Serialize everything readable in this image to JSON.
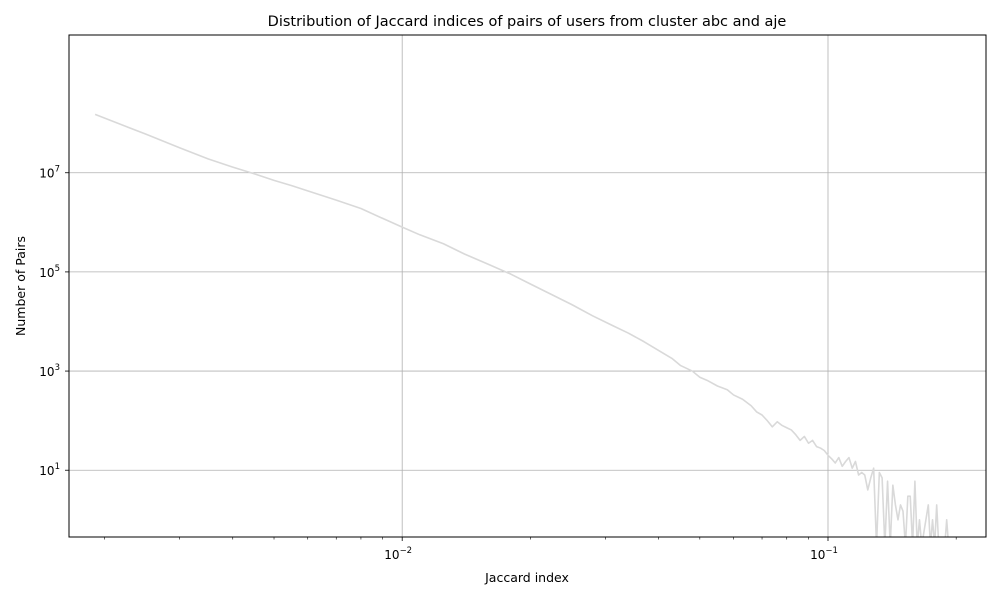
{
  "chart_data": {
    "type": "line",
    "title": "Distribution of Jaccard indices of pairs of users from cluster abc and aje",
    "xlabel": "Jaccard index",
    "ylabel": "Number of Pairs",
    "xscale": "log",
    "yscale": "log",
    "xlim": [
      0.00165,
      0.235
    ],
    "ylim": [
      0.45,
      6000000000
    ],
    "grid": true,
    "line_color": "#d9d9d9",
    "x_ticks": [
      {
        "value": 0.01,
        "base": "10",
        "exp": "−2"
      },
      {
        "value": 0.1,
        "base": "10",
        "exp": "−1"
      }
    ],
    "y_ticks": [
      {
        "value": 10,
        "base": "10",
        "exp": "1"
      },
      {
        "value": 1000,
        "base": "10",
        "exp": "3"
      },
      {
        "value": 100000,
        "base": "10",
        "exp": "5"
      },
      {
        "value": 10000000,
        "base": "10",
        "exp": "7"
      }
    ],
    "series": [
      {
        "points": [
          [
            0.0019,
            150000000
          ],
          [
            0.0025,
            60000000
          ],
          [
            0.003,
            32000000
          ],
          [
            0.0035,
            19000000
          ],
          [
            0.004,
            13000000
          ],
          [
            0.0045,
            9500000
          ],
          [
            0.005,
            7000000
          ],
          [
            0.0055,
            5500000
          ],
          [
            0.006,
            4300000
          ],
          [
            0.007,
            2800000
          ],
          [
            0.008,
            1900000
          ],
          [
            0.009,
            1200000
          ],
          [
            0.01,
            800000
          ],
          [
            0.011,
            560000
          ],
          [
            0.0125,
            370000
          ],
          [
            0.014,
            230000
          ],
          [
            0.016,
            140000
          ],
          [
            0.018,
            90000
          ],
          [
            0.02,
            57000
          ],
          [
            0.022,
            38000
          ],
          [
            0.025,
            22000
          ],
          [
            0.028,
            13000
          ],
          [
            0.031,
            8500
          ],
          [
            0.034,
            5800
          ],
          [
            0.037,
            3900
          ],
          [
            0.04,
            2600
          ],
          [
            0.043,
            1800
          ],
          [
            0.045,
            1300
          ],
          [
            0.048,
            1000
          ],
          [
            0.05,
            750
          ],
          [
            0.052,
            650
          ],
          [
            0.055,
            500
          ],
          [
            0.058,
            420
          ],
          [
            0.06,
            330
          ],
          [
            0.063,
            270
          ],
          [
            0.066,
            200
          ],
          [
            0.068,
            150
          ],
          [
            0.07,
            130
          ],
          [
            0.072,
            100
          ],
          [
            0.074,
            75
          ],
          [
            0.076,
            95
          ],
          [
            0.078,
            80
          ],
          [
            0.08,
            72
          ],
          [
            0.082,
            65
          ],
          [
            0.084,
            52
          ],
          [
            0.086,
            40
          ],
          [
            0.088,
            48
          ],
          [
            0.09,
            35
          ],
          [
            0.092,
            40
          ],
          [
            0.094,
            30
          ],
          [
            0.096,
            28
          ],
          [
            0.098,
            25
          ],
          [
            0.1,
            20
          ],
          [
            0.102,
            17
          ],
          [
            0.104,
            14
          ],
          [
            0.106,
            18
          ],
          [
            0.108,
            12
          ],
          [
            0.11,
            15
          ],
          [
            0.112,
            18
          ],
          [
            0.114,
            11
          ],
          [
            0.116,
            15
          ],
          [
            0.118,
            8
          ],
          [
            0.12,
            9
          ],
          [
            0.122,
            8
          ],
          [
            0.124,
            4
          ],
          [
            0.126,
            7
          ],
          [
            0.128,
            11
          ],
          [
            0.13,
            0.3
          ],
          [
            0.132,
            9
          ],
          [
            0.134,
            7
          ],
          [
            0.136,
            0.3
          ],
          [
            0.138,
            6
          ],
          [
            0.14,
            0.3
          ],
          [
            0.142,
            5
          ],
          [
            0.144,
            2
          ],
          [
            0.146,
            1
          ],
          [
            0.148,
            2
          ],
          [
            0.15,
            1.5
          ],
          [
            0.152,
            0.3
          ],
          [
            0.154,
            3
          ],
          [
            0.156,
            3
          ],
          [
            0.158,
            0.3
          ],
          [
            0.16,
            6
          ],
          [
            0.162,
            0.3
          ],
          [
            0.164,
            1
          ],
          [
            0.166,
            0.3
          ],
          [
            0.172,
            2
          ],
          [
            0.174,
            0.3
          ],
          [
            0.176,
            1
          ],
          [
            0.178,
            0.3
          ],
          [
            0.18,
            2
          ],
          [
            0.182,
            0.3
          ],
          [
            0.188,
            0.3
          ],
          [
            0.19,
            1
          ],
          [
            0.192,
            0.3
          ]
        ]
      }
    ]
  }
}
